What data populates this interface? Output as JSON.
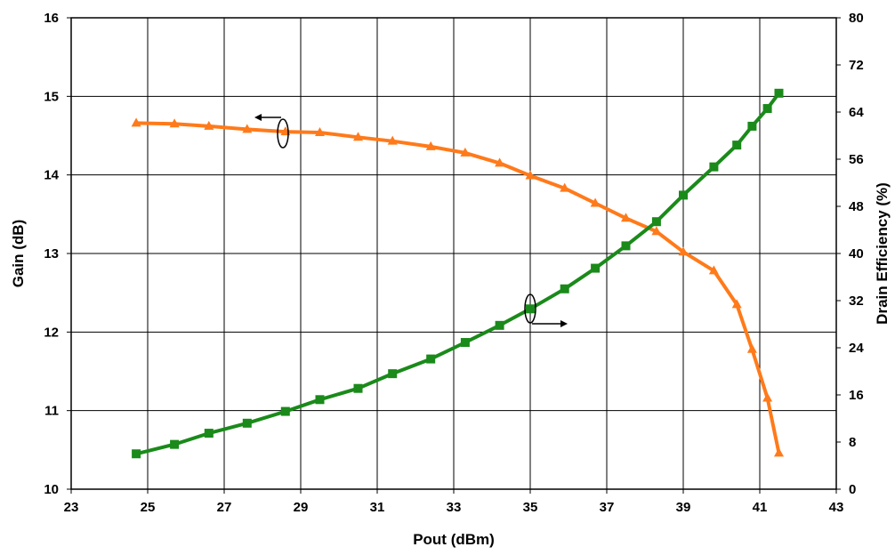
{
  "chart_data": {
    "type": "line",
    "xlabel": "Pout (dBm)",
    "ylabel_left": "Gain (dB)",
    "ylabel_right": "Drain Efficiency (%)",
    "xlim": [
      23,
      43
    ],
    "ylim_left": [
      10,
      16
    ],
    "ylim_right": [
      0,
      80
    ],
    "x_ticks": [
      "23",
      "25",
      "27",
      "29",
      "31",
      "33",
      "35",
      "37",
      "39",
      "41",
      "43"
    ],
    "y_left_ticks": [
      "10",
      "11",
      "12",
      "13",
      "14",
      "15",
      "16"
    ],
    "y_right_ticks": [
      "0",
      "8",
      "16",
      "24",
      "32",
      "40",
      "48",
      "56",
      "64",
      "72",
      "80"
    ],
    "grid": true,
    "series": [
      {
        "axis": "left",
        "color": "#ff7a1a",
        "marker": "triangle",
        "x": [
          24.7,
          25.7,
          26.6,
          27.6,
          28.6,
          29.5,
          30.5,
          31.4,
          32.4,
          33.3,
          34.2,
          35.0,
          35.9,
          36.7,
          37.5,
          38.3,
          39.0,
          39.8,
          40.4,
          40.8,
          41.2,
          41.5
        ],
        "y": [
          14.66,
          14.65,
          14.62,
          14.58,
          14.55,
          14.54,
          14.48,
          14.43,
          14.36,
          14.28,
          14.15,
          13.99,
          13.83,
          13.64,
          13.45,
          13.28,
          13.02,
          12.78,
          12.35,
          11.78,
          11.16,
          10.46
        ]
      },
      {
        "axis": "right",
        "color": "#1a8a1a",
        "marker": "square",
        "x": [
          24.7,
          25.7,
          26.6,
          27.6,
          28.6,
          29.5,
          30.5,
          31.4,
          32.4,
          33.3,
          34.2,
          35.0,
          35.9,
          36.7,
          37.5,
          38.3,
          39.0,
          39.8,
          40.4,
          40.8,
          41.2,
          41.5
        ],
        "y": [
          6.0,
          7.6,
          9.5,
          11.2,
          13.2,
          15.2,
          17.1,
          19.6,
          22.1,
          24.9,
          27.8,
          30.6,
          34.0,
          37.5,
          41.3,
          45.4,
          49.9,
          54.7,
          58.4,
          61.6,
          64.6,
          67.2
        ]
      }
    ]
  }
}
